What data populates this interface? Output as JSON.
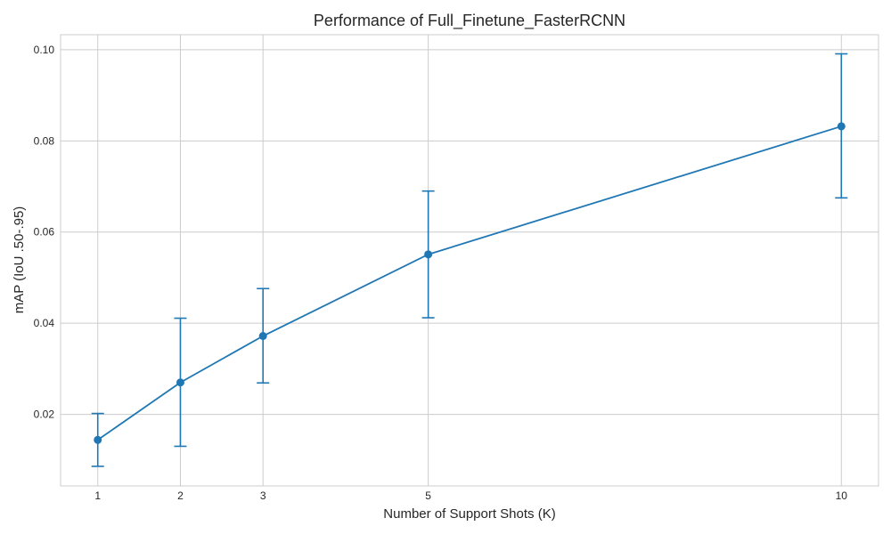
{
  "chart_data": {
    "type": "line",
    "title": "Performance of Full_Finetune_FasterRCNN",
    "xlabel": "Number of Support Shots (K)",
    "ylabel": "mAP (IoU .50-.95)",
    "x": [
      1,
      2,
      3,
      5,
      10
    ],
    "x_ticks": [
      "1",
      "2",
      "3",
      "5",
      "10"
    ],
    "y_ticks": [
      "0.02",
      "0.04",
      "0.06",
      "0.08",
      "0.10"
    ],
    "y_tick_values": [
      0.02,
      0.04,
      0.06,
      0.08,
      0.1
    ],
    "xlim": [
      0.55,
      10.45
    ],
    "ylim": [
      0.0043,
      0.1033
    ],
    "grid": true,
    "series": [
      {
        "values": [
          0.0144,
          0.027,
          0.0372,
          0.0551,
          0.0832
        ],
        "err_low": [
          0.0086,
          0.013,
          0.0269,
          0.0412,
          0.0675
        ],
        "err_high": [
          0.0202,
          0.0411,
          0.0476,
          0.069,
          0.0991
        ],
        "color": "#1f77b4",
        "marker": "circle"
      }
    ]
  }
}
